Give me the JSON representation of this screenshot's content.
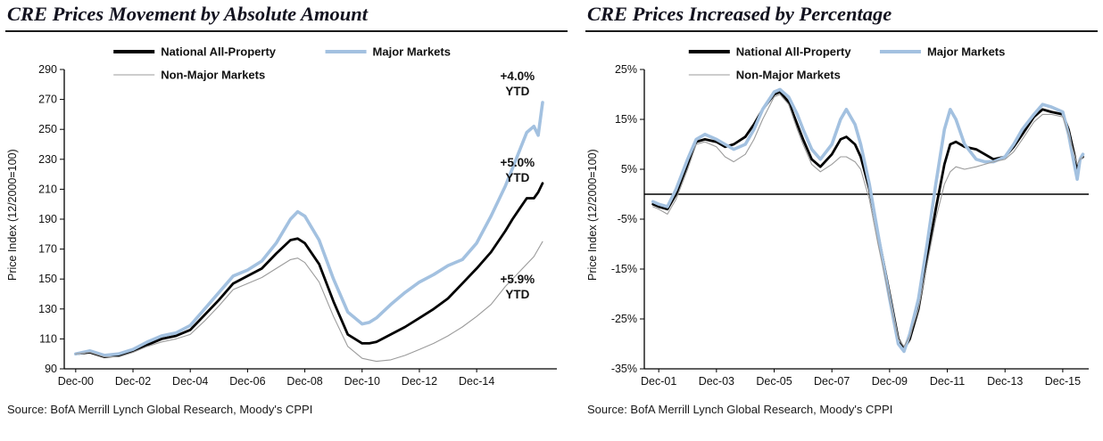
{
  "chart_data": [
    {
      "type": "line",
      "title": "CRE Prices Movement by Absolute Amount",
      "xlabel": "",
      "ylabel": "Price Index (12/2000=100)",
      "source": "Source: BofA Merrill Lynch Global Research, Moody's CPPI",
      "x_unit": "years since Dec-2000",
      "xlim": [
        -0.4,
        16.8
      ],
      "ylim": [
        90,
        290
      ],
      "yticks": [
        90,
        110,
        130,
        150,
        170,
        190,
        210,
        230,
        250,
        270,
        290
      ],
      "ytick_labels": [
        "90",
        "110",
        "130",
        "150",
        "170",
        "190",
        "210",
        "230",
        "250",
        "270",
        "290"
      ],
      "xticks": [
        0,
        2,
        4,
        6,
        8,
        10,
        12,
        14
      ],
      "xtick_labels": [
        "Dec-00",
        "Dec-02",
        "Dec-04",
        "Dec-06",
        "Dec-08",
        "Dec-10",
        "Dec-12",
        "Dec-14"
      ],
      "grid": false,
      "zero_line": false,
      "legend_position": "top-inside",
      "x": [
        0,
        0.5,
        1,
        1.5,
        2,
        2.5,
        3,
        3.5,
        4,
        4.5,
        5,
        5.5,
        6,
        6.5,
        7,
        7.5,
        7.75,
        8,
        8.5,
        9,
        9.5,
        10,
        10.25,
        10.5,
        11,
        11.5,
        12,
        12.5,
        13,
        13.5,
        14,
        14.5,
        15,
        15.25,
        15.5,
        15.75,
        16,
        16.15,
        16.3
      ],
      "series": [
        {
          "name": "National All-Property",
          "color": "#000000",
          "width": 2.8,
          "values": [
            100,
            101,
            98,
            99,
            102,
            106,
            110,
            112,
            116,
            126,
            136,
            147,
            152,
            157,
            167,
            176,
            177,
            174,
            160,
            135,
            113,
            107,
            107,
            108,
            113,
            118,
            124,
            130,
            137,
            147,
            157,
            168,
            182,
            190,
            197,
            204,
            204,
            208,
            214
          ]
        },
        {
          "name": "Major Markets",
          "color": "#a3c1e0",
          "width": 3.6,
          "values": [
            100,
            102,
            99,
            100,
            103,
            108,
            112,
            114,
            119,
            130,
            141,
            152,
            156,
            162,
            174,
            190,
            195,
            192,
            176,
            150,
            128,
            120,
            121,
            124,
            133,
            141,
            148,
            153,
            159,
            163,
            174,
            192,
            212,
            224,
            236,
            248,
            252,
            246,
            268
          ]
        },
        {
          "name": "Non-Major Markets",
          "color": "#9b9b9b",
          "width": 1.1,
          "values": [
            100,
            101,
            98,
            98,
            101,
            105,
            108,
            110,
            113,
            122,
            132,
            143,
            147,
            151,
            157,
            163,
            164,
            161,
            148,
            125,
            105,
            97,
            96,
            95,
            96,
            99,
            103,
            107,
            112,
            118,
            125,
            133,
            145,
            150,
            155,
            160,
            165,
            170,
            175
          ]
        }
      ],
      "annotations": [
        {
          "lines": [
            "+4.0%",
            "YTD"
          ],
          "fx": 0.92,
          "fy": 0.035
        },
        {
          "lines": [
            "+5.0%",
            "YTD"
          ],
          "fx": 0.92,
          "fy": 0.325
        },
        {
          "lines": [
            "+5.9%",
            "YTD"
          ],
          "fx": 0.92,
          "fy": 0.715
        }
      ]
    },
    {
      "type": "line",
      "title": "CRE Prices Increased by Percentage",
      "xlabel": "",
      "ylabel": "Price Index (12/2000=100)",
      "source": "Source: BofA Merrill Lynch Global Research, Moody's CPPI",
      "x_unit": "years since Dec-2000",
      "xlim": [
        0.5,
        15.9
      ],
      "ylim": [
        -35,
        25
      ],
      "yticks": [
        -35,
        -25,
        -15,
        -5,
        5,
        15,
        25
      ],
      "ytick_labels": [
        "-35%",
        "-25%",
        "-15%",
        "-5%",
        "5%",
        "15%",
        "25%"
      ],
      "xticks": [
        1,
        3,
        5,
        7,
        9,
        11,
        13,
        15
      ],
      "xtick_labels": [
        "Dec-01",
        "Dec-03",
        "Dec-05",
        "Dec-07",
        "Dec-09",
        "Dec-11",
        "Dec-13",
        "Dec-15"
      ],
      "grid": false,
      "zero_line": true,
      "legend_position": "top-inside",
      "x": [
        0.8,
        1,
        1.3,
        1.6,
        2,
        2.3,
        2.6,
        3,
        3.3,
        3.6,
        4,
        4.3,
        4.6,
        5,
        5.2,
        5.5,
        5.8,
        6,
        6.3,
        6.6,
        7,
        7.3,
        7.5,
        7.8,
        8,
        8.3,
        8.6,
        9,
        9.3,
        9.5,
        9.7,
        10,
        10.3,
        10.6,
        10.9,
        11.1,
        11.3,
        11.6,
        12,
        12.3,
        12.6,
        13,
        13.3,
        13.6,
        14,
        14.3,
        14.6,
        15,
        15.2,
        15.4,
        15.5,
        15.6,
        15.7
      ],
      "series": [
        {
          "name": "National All-Property",
          "color": "#000000",
          "width": 2.8,
          "values": [
            -2,
            -2.5,
            -3,
            0,
            6,
            10.5,
            11,
            10.5,
            9.5,
            10,
            11.5,
            14,
            17,
            20,
            20.5,
            18.5,
            14,
            11,
            7,
            5.5,
            8,
            11,
            11.5,
            10,
            7.5,
            1,
            -8,
            -20,
            -29,
            -31,
            -29,
            -23,
            -13,
            -3,
            6,
            10,
            10.5,
            9.5,
            9,
            8,
            7,
            7.5,
            9.5,
            12,
            15.5,
            17,
            16.5,
            16,
            13,
            8,
            5,
            7,
            7.5
          ]
        },
        {
          "name": "Major Markets",
          "color": "#a3c1e0",
          "width": 3.6,
          "values": [
            -1.5,
            -2,
            -2.5,
            1,
            7,
            11,
            12,
            11,
            10,
            9,
            10,
            13,
            17,
            20.5,
            21,
            19.5,
            16,
            13,
            9,
            7,
            10,
            15,
            17,
            14,
            10,
            2,
            -8,
            -21,
            -30,
            -31.5,
            -28,
            -21,
            -10,
            2,
            13,
            17,
            15,
            10,
            7,
            6.5,
            6.5,
            7.5,
            10,
            13,
            16,
            18,
            17.5,
            16.5,
            12,
            6,
            3,
            7,
            8
          ]
        },
        {
          "name": "Non-Major Markets",
          "color": "#9b9b9b",
          "width": 1.1,
          "values": [
            -2.5,
            -3,
            -4,
            -1,
            5,
            10,
            10.5,
            9.5,
            7.5,
            6.5,
            8,
            11,
            15,
            19.5,
            20,
            18,
            13,
            10,
            6,
            4.5,
            6,
            7.5,
            7.5,
            6.5,
            5,
            -1,
            -10,
            -21,
            -29,
            -30.5,
            -28.5,
            -23,
            -14,
            -5,
            2,
            4.5,
            5.5,
            5,
            5.5,
            6,
            6.5,
            7,
            8.5,
            11,
            14.5,
            16,
            16,
            15.5,
            12,
            8,
            6,
            7,
            7.5
          ]
        }
      ],
      "annotations": []
    }
  ]
}
